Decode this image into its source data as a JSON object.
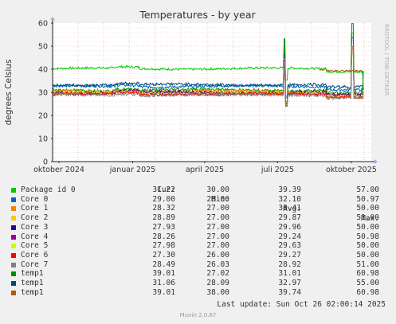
{
  "chart_data": {
    "type": "line",
    "title": "Temperatures - by year",
    "ylabel": "degrees Celsius",
    "ylim": [
      0,
      60
    ],
    "yticks": [
      "0",
      "10",
      "20",
      "30",
      "40",
      "50",
      "60"
    ],
    "xticks": [
      "oktober 2024",
      "januar 2025",
      "april 2025",
      "juli 2025",
      "oktober 2025"
    ],
    "x_range": [
      "2024-09-23",
      "2025-10-26"
    ],
    "grid": true,
    "side_label": "RRDTOOL / TOBI OETIKER",
    "series": [
      {
        "name": "Package id 0",
        "color": "#00cc00",
        "base": 40.3,
        "wobble": 0.5,
        "cur": "31.22",
        "min": "30.00",
        "avg": "39.39",
        "max": "57.00"
      },
      {
        "name": "Core 0",
        "color": "#0066b3",
        "base": 32.6,
        "wobble": 0.6,
        "cur": "29.00",
        "min": "28.00",
        "avg": "32.10",
        "max": "50.97"
      },
      {
        "name": "Core 1",
        "color": "#ff8000",
        "base": 30.4,
        "wobble": 0.6,
        "cur": "28.32",
        "min": "27.00",
        "avg": "30.41",
        "max": "50.00"
      },
      {
        "name": "Core 2",
        "color": "#ffcc00",
        "base": 29.9,
        "wobble": 0.6,
        "cur": "28.89",
        "min": "27.00",
        "avg": "29.87",
        "max": "51.00"
      },
      {
        "name": "Core 3",
        "color": "#330099",
        "base": 30.0,
        "wobble": 0.6,
        "cur": "27.93",
        "min": "27.00",
        "avg": "29.96",
        "max": "50.00"
      },
      {
        "name": "Core 4",
        "color": "#990099",
        "base": 29.3,
        "wobble": 0.6,
        "cur": "28.26",
        "min": "27.00",
        "avg": "29.24",
        "max": "50.98"
      },
      {
        "name": "Core 5",
        "color": "#ccff00",
        "base": 29.6,
        "wobble": 0.6,
        "cur": "27.98",
        "min": "27.00",
        "avg": "29.63",
        "max": "50.00"
      },
      {
        "name": "Core 6",
        "color": "#ff0000",
        "base": 29.3,
        "wobble": 0.6,
        "cur": "27.30",
        "min": "26.00",
        "avg": "29.27",
        "max": "50.00"
      },
      {
        "name": "Core 7",
        "color": "#808080",
        "base": 28.9,
        "wobble": 0.6,
        "cur": "28.49",
        "min": "26.03",
        "avg": "28.92",
        "max": "51.00"
      },
      {
        "name": "temp1",
        "color": "#008f00",
        "base": 31.0,
        "wobble": 0.6,
        "cur": "39.01",
        "min": "27.02",
        "avg": "31.01",
        "max": "60.98"
      },
      {
        "name": "temp1",
        "color": "#00487d",
        "base": 33.3,
        "wobble": 0.6,
        "cur": "31.06",
        "min": "28.09",
        "avg": "32.97",
        "max": "55.00"
      },
      {
        "name": "temp1",
        "color": "#b35a00",
        "base": 39.5,
        "wobble": 0.4,
        "cur": "39.01",
        "min": "38.00",
        "avg": "39.74",
        "max": "60.98"
      }
    ]
  },
  "legend": {
    "col_cur": "Cur:",
    "col_min": "Min:",
    "col_avg": "Avg:",
    "col_max": "Max:"
  },
  "footer": {
    "last_update": "Last update: Sun Oct 26 02:00:14 2025",
    "generator": "Munin 2.0.67"
  }
}
